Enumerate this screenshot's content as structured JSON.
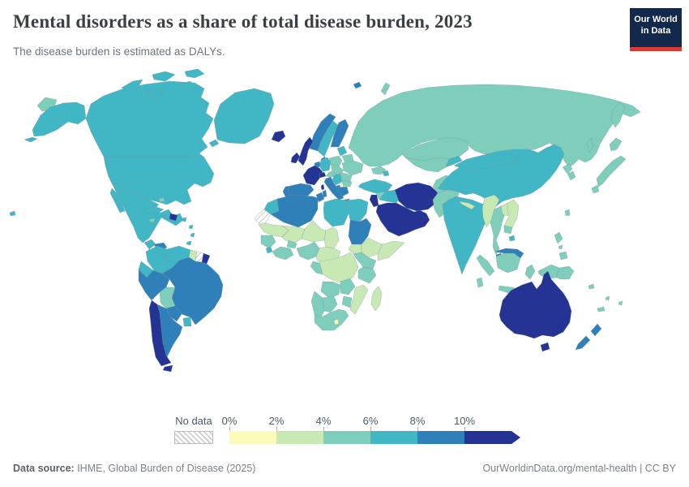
{
  "header": {
    "title": "Mental disorders as a share of total disease burden, 2023",
    "subtitle": "The disease burden is estimated as DALYs."
  },
  "logo": {
    "line1": "Our World",
    "line2": "in Data",
    "bg": "#12294b",
    "accent": "#d73c32"
  },
  "legend": {
    "no_data_label": "No data",
    "ticks": [
      "0%",
      "2%",
      "4%",
      "6%",
      "8%",
      "10%"
    ],
    "buckets": [
      {
        "range": "0-2%",
        "color": "#fbfcba"
      },
      {
        "range": "2-4%",
        "color": "#c9e9b4"
      },
      {
        "range": "4-6%",
        "color": "#7fcdbb"
      },
      {
        "range": "6-8%",
        "color": "#41b6c4"
      },
      {
        "range": "8-10%",
        "color": "#2f7fb9"
      },
      {
        "range": "10%+",
        "color": "#253494"
      }
    ]
  },
  "footer": {
    "source_label": "Data source:",
    "source_text": " IHME, Global Burden of Disease (2025)",
    "right_text": "OurWorldinData.org/mental-health | CC BY"
  },
  "map": {
    "palette": {
      "0-2%": "#fbfcba",
      "2-4%": "#c9e9b4",
      "4-6%": "#7fcdbb",
      "6-8%": "#41b6c4",
      "8-10%": "#2f7fb9",
      "10%+": "#253494",
      "No data": "hatch"
    }
  },
  "chart_data": {
    "type": "choropleth",
    "title": "Mental disorders as a share of total disease burden, 2023",
    "subtitle": "The disease burden is estimated as DALYs.",
    "unit": "% of total DALYs",
    "legend_bins": [
      "0-2%",
      "2-4%",
      "4-6%",
      "6-8%",
      "8-10%",
      "10%+",
      "No data"
    ],
    "regions": {
      "United States": "6-8%",
      "Canada": "6-8%",
      "Greenland": "6-8%",
      "Mexico": "6-8%",
      "Iceland": "10%+",
      "Guatemala": "6-8%",
      "Honduras": "8-10%",
      "El Salvador": "8-10%",
      "Nicaragua": "8-10%",
      "Costa Rica": "6-8%",
      "Panama": "6-8%",
      "Cuba": "6-8%",
      "Jamaica": "4-6%",
      "Haiti": "6-8%",
      "Dominican Republic": "10%+",
      "Puerto Rico": "6-8%",
      "Bahamas": "4-6%",
      "Lesser Antilles": "6-8%",
      "Trinidad and Tobago": "6-8%",
      "Colombia": "6-8%",
      "Venezuela": "6-8%",
      "Guyana": "2-4%",
      "Suriname": "No data",
      "French Guiana": "10%+",
      "Brazil": "8-10%",
      "Ecuador": "6-8%",
      "Peru": "8-10%",
      "Bolivia": "4-6%",
      "Paraguay": "8-10%",
      "Uruguay": "6-8%",
      "Argentina": "8-10%",
      "Chile": "10%+",
      "United Kingdom": "10%+",
      "Ireland": "10%+",
      "France": "10%+",
      "Spain": "8-10%",
      "Portugal": "8-10%",
      "Norway": "8-10%",
      "Sweden": "6-8%",
      "Finland": "8-10%",
      "Denmark": "8-10%",
      "Netherlands": "8-10%",
      "Germany": "6-8%",
      "Switzerland": "10%+",
      "Austria": "4-6%",
      "Italy": "8-10%",
      "Poland": "4-6%",
      "Czechia": "4-6%",
      "Baltic states": "6-8%",
      "Belarus": "4-6%",
      "Ukraine": "4-6%",
      "Romania": "4-6%",
      "Bulgaria": "4-6%",
      "Serbia": "6-8%",
      "Albania": "8-10%",
      "North Macedonia": "0-2%",
      "Greece": "8-10%",
      "Russia": "4-6%",
      "Kazakhstan": "4-6%",
      "Uzbekistan": "4-6%",
      "Kyrgyzstan": "6-8%",
      "Caucasus": "4-6%",
      "Azerbaijan": "6-8%",
      "Turkey": "6-8%",
      "Syria": "4-6%",
      "Iraq": "6-8%",
      "Israel": "10%+",
      "Iran": "10%+",
      "Saudi Arabia": "10%+",
      "Morocco": "6-8%",
      "Western Sahara": "No data",
      "Algeria": "8-10%",
      "Tunisia": "8-10%",
      "Libya": "6-8%",
      "Egypt": "6-8%",
      "Mauritania": "2-4%",
      "Mali": "2-4%",
      "Niger": "2-4%",
      "Chad": "2-4%",
      "Sudan": "8-10%",
      "South Sudan": "2-4%",
      "Ethiopia": "2-4%",
      "Somalia": "2-4%",
      "Senegal": "4-6%",
      "Sierra Leone": "6-8%",
      "Ivory Coast": "4-6%",
      "Burkina Faso": "4-6%",
      "Nigeria": "4-6%",
      "Cameroon": "2-4%",
      "Gabon": "4-6%",
      "DR Congo": "2-4%",
      "Kenya": "4-6%",
      "Tanzania": "4-6%",
      "Angola": "4-6%",
      "Zambia": "4-6%",
      "Mozambique": "2-4%",
      "Zimbabwe": "4-6%",
      "Namibia": "4-6%",
      "Botswana": "4-6%",
      "South Africa": "4-6%",
      "Lesotho": "0-2%",
      "Madagascar": "2-4%",
      "Afghanistan": "4-6%",
      "Pakistan": "4-6%",
      "India": "6-8%",
      "Nepal": "2-4%",
      "Bangladesh": "2-4%",
      "Sri Lanka": "4-6%",
      "China": "6-8%",
      "Mongolia": "6-8%",
      "North Korea": "4-6%",
      "South Korea": "4-6%",
      "Japan": "4-6%",
      "Taiwan": "4-6%",
      "Myanmar": "2-4%",
      "Thailand": "4-6%",
      "Laos": "2-4%",
      "Vietnam": "2-4%",
      "Cambodia": "4-6%",
      "Malaysia": "8-10%",
      "Indonesia": "4-6%",
      "Philippines": "4-6%",
      "Papua New Guinea": "4-6%",
      "Australia": "10%+",
      "New Zealand": "8-10%",
      "New Caledonia": "4-6%",
      "Vanuatu": "4-6%",
      "Fiji": "4-6%",
      "Solomon Islands": "4-6%"
    }
  }
}
